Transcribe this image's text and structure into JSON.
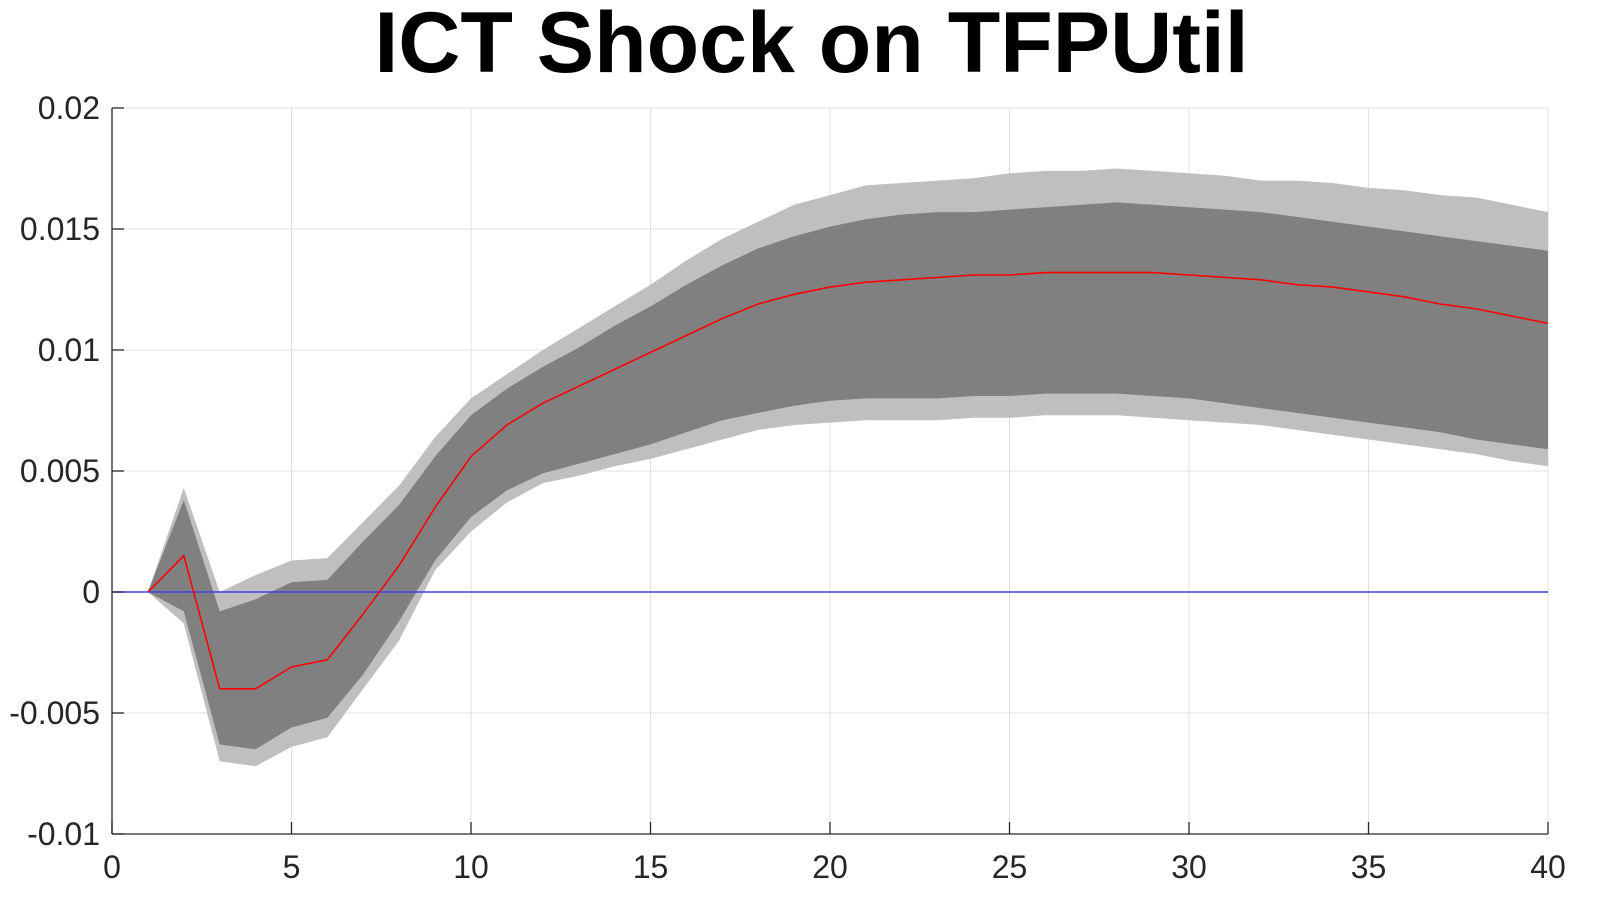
{
  "chart_data": {
    "type": "line",
    "title": "ICT Shock on TFPUtil",
    "xlabel": "",
    "ylabel": "",
    "xlim": [
      0,
      40
    ],
    "ylim": [
      -0.01,
      0.02
    ],
    "grid": true,
    "x_ticks": [
      0,
      5,
      10,
      15,
      20,
      25,
      30,
      35,
      40
    ],
    "x_tick_labels": [
      "0",
      "5",
      "10",
      "15",
      "20",
      "25",
      "30",
      "35",
      "40"
    ],
    "y_ticks": [
      -0.01,
      -0.005,
      0,
      0.005,
      0.01,
      0.015,
      0.02
    ],
    "y_tick_labels": [
      "-0.01",
      "-0.005",
      "0",
      "0.005",
      "0.01",
      "0.015",
      "0.02"
    ],
    "x": [
      1,
      2,
      3,
      4,
      5,
      6,
      7,
      8,
      9,
      10,
      11,
      12,
      13,
      14,
      15,
      16,
      17,
      18,
      19,
      20,
      21,
      22,
      23,
      24,
      25,
      26,
      27,
      28,
      29,
      30,
      31,
      32,
      33,
      34,
      35,
      36,
      37,
      38,
      39,
      40
    ],
    "series": [
      {
        "role": "median",
        "color": "#ff0000",
        "values": [
          0,
          0.0015,
          -0.004,
          -0.004,
          -0.0031,
          -0.0028,
          -0.0009,
          0.0011,
          0.0035,
          0.0056,
          0.0069,
          0.0078,
          0.0085,
          0.0092,
          0.0099,
          0.0106,
          0.0113,
          0.0119,
          0.0123,
          0.0126,
          0.0128,
          0.0129,
          0.013,
          0.0131,
          0.0131,
          0.0132,
          0.0132,
          0.0132,
          0.0132,
          0.0131,
          0.013,
          0.0129,
          0.0127,
          0.0126,
          0.0124,
          0.0122,
          0.0119,
          0.0117,
          0.0114,
          0.0111
        ]
      }
    ],
    "bands": [
      {
        "role": "outer",
        "color": "#bfbfbf",
        "lower": [
          0,
          -0.0013,
          -0.007,
          -0.0072,
          -0.0064,
          -0.006,
          -0.004,
          -0.002,
          0.0009,
          0.0025,
          0.0037,
          0.0045,
          0.0048,
          0.0052,
          0.0055,
          0.0059,
          0.0063,
          0.0067,
          0.0069,
          0.007,
          0.0071,
          0.0071,
          0.0071,
          0.0072,
          0.0072,
          0.0073,
          0.0073,
          0.0073,
          0.0072,
          0.0071,
          0.007,
          0.0069,
          0.0067,
          0.0065,
          0.0063,
          0.0061,
          0.0059,
          0.0057,
          0.0054,
          0.0052
        ],
        "upper": [
          0,
          0.0043,
          0,
          0.0007,
          0.0013,
          0.0014,
          0.0029,
          0.0044,
          0.0064,
          0.008,
          0.009,
          0.01,
          0.0109,
          0.0118,
          0.0127,
          0.0137,
          0.0146,
          0.0153,
          0.016,
          0.0164,
          0.0168,
          0.0169,
          0.017,
          0.0171,
          0.0173,
          0.0174,
          0.0174,
          0.0175,
          0.0174,
          0.0173,
          0.0172,
          0.017,
          0.017,
          0.0169,
          0.0167,
          0.0166,
          0.0164,
          0.0163,
          0.016,
          0.0157
        ]
      },
      {
        "role": "inner",
        "color": "#808080",
        "lower": [
          0,
          -0.0008,
          -0.0063,
          -0.0065,
          -0.0056,
          -0.0052,
          -0.0034,
          -0.0012,
          0.0013,
          0.0031,
          0.0042,
          0.0049,
          0.0053,
          0.0057,
          0.0061,
          0.0066,
          0.0071,
          0.0074,
          0.0077,
          0.0079,
          0.008,
          0.008,
          0.008,
          0.0081,
          0.0081,
          0.0082,
          0.0082,
          0.0082,
          0.0081,
          0.008,
          0.0078,
          0.0076,
          0.0074,
          0.0072,
          0.007,
          0.0068,
          0.0066,
          0.0063,
          0.0061,
          0.0059
        ],
        "upper": [
          0,
          0.0038,
          -0.0008,
          -0.0003,
          0.0004,
          0.0005,
          0.0021,
          0.0036,
          0.0056,
          0.0073,
          0.0084,
          0.0093,
          0.0101,
          0.011,
          0.0118,
          0.0127,
          0.0135,
          0.0142,
          0.0147,
          0.0151,
          0.0154,
          0.0156,
          0.0157,
          0.0157,
          0.0158,
          0.0159,
          0.016,
          0.0161,
          0.016,
          0.0159,
          0.0158,
          0.0157,
          0.0155,
          0.0153,
          0.0151,
          0.0149,
          0.0147,
          0.0145,
          0.0143,
          0.0141
        ]
      }
    ],
    "reference_line": {
      "y": 0,
      "color": "#4040e0"
    },
    "axis_color": "#262626",
    "grid_color": "#e0e0e0"
  }
}
